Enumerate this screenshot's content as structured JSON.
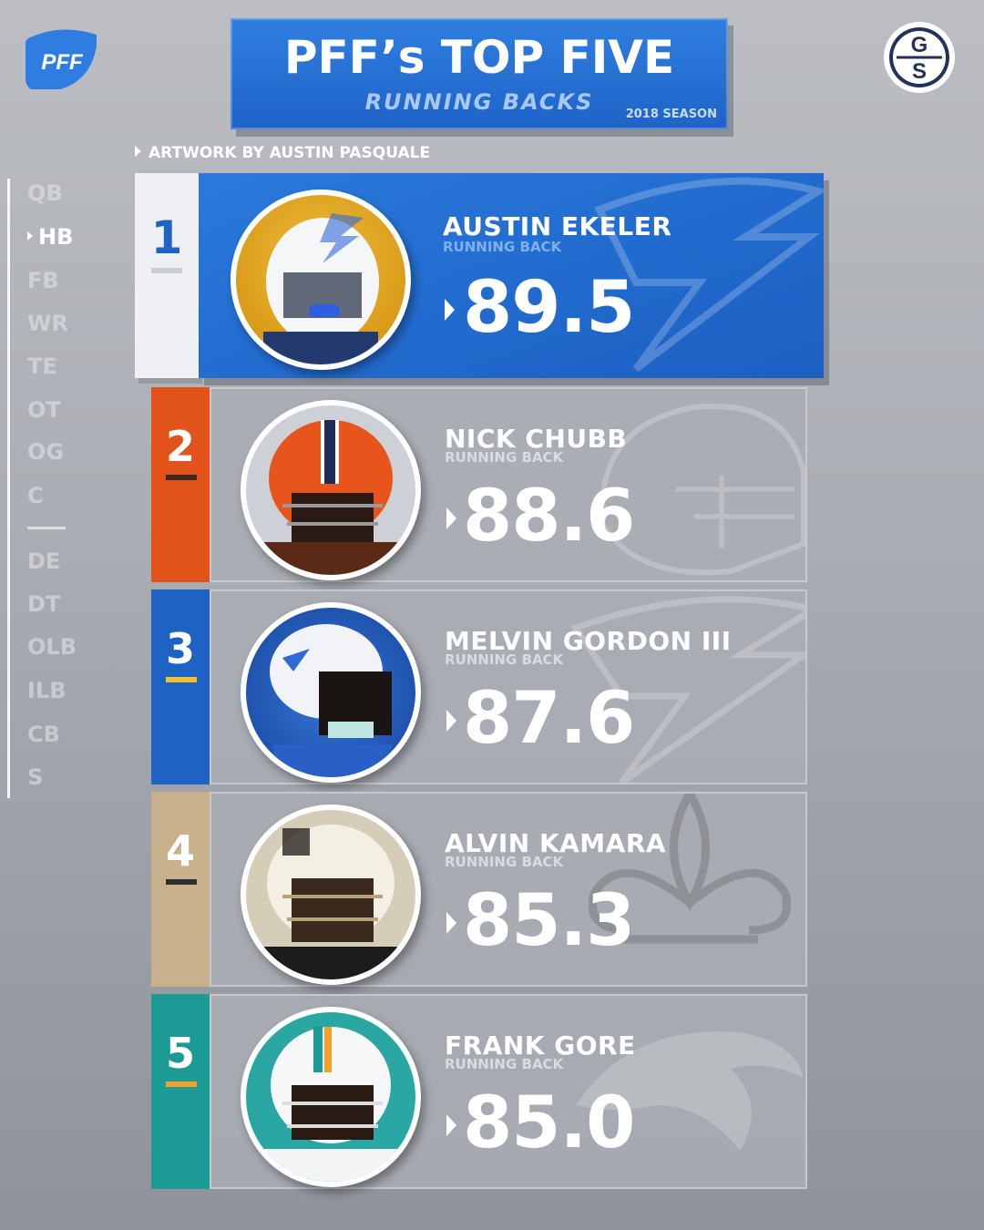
{
  "header": {
    "title": "PFF’s TOP FIVE",
    "subtitle": "RUNNING BACKS",
    "season": "2018 SEASON",
    "credit": "ARTWORK BY AUSTIN PASQUALE",
    "pff_logo": "PFF",
    "gs_logo_top": "G",
    "gs_logo_bottom": "S"
  },
  "positions": [
    "QB",
    "HB",
    "FB",
    "WR",
    "TE",
    "OT",
    "OG",
    "C",
    "DE",
    "DT",
    "OLB",
    "ILB",
    "CB",
    "S"
  ],
  "active_position": "HB",
  "players": [
    {
      "rank": "1",
      "first": "AUSTIN",
      "last": "EKELER",
      "role": "RUNNING BACK",
      "grade": "89.5",
      "team_color": "#1e66c9",
      "bar_color": "#c9ccd2"
    },
    {
      "rank": "2",
      "first": "NICK",
      "last": "CHUBB",
      "role": "RUNNING BACK",
      "grade": "88.6",
      "team_color": "#e2531c",
      "bar_color": "#3b2a22"
    },
    {
      "rank": "3",
      "first": "MELVIN",
      "last": "GORDON III",
      "role": "RUNNING BACK",
      "grade": "87.6",
      "team_color": "#1e62c4",
      "bar_color": "#f3c22b"
    },
    {
      "rank": "4",
      "first": "ALVIN",
      "last": "KAMARA",
      "role": "RUNNING BACK",
      "grade": "85.3",
      "team_color": "#c9b08c",
      "bar_color": "#2e2e30"
    },
    {
      "rank": "5",
      "first": "FRANK",
      "last": "GORE",
      "role": "RUNNING BACK",
      "grade": "85.0",
      "team_color": "#1c9a95",
      "bar_color": "#f2a22a"
    }
  ]
}
